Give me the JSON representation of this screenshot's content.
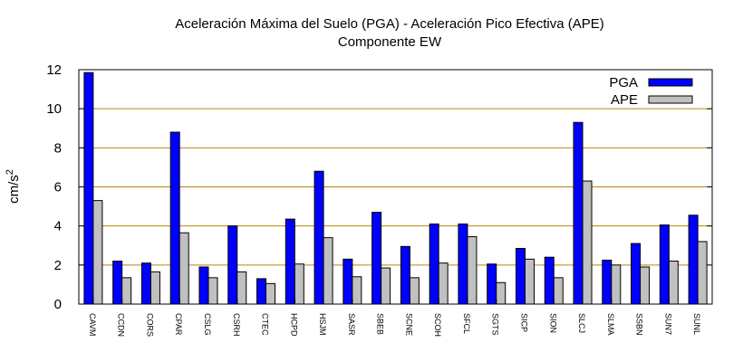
{
  "chart_data": {
    "type": "bar",
    "title": "Aceleración Máxima del Suelo (PGA) -  Aceleración Pico Efectiva (APE)",
    "subtitle": "Componente EW",
    "ylabel_main": "cm/s",
    "ylabel_sup": "2",
    "xlabel": "",
    "ylim": [
      0,
      12
    ],
    "yticks": [
      0,
      2,
      4,
      6,
      8,
      10,
      12
    ],
    "ytick_labels": [
      "0",
      "2",
      "4",
      "6",
      "8",
      "10",
      "12"
    ],
    "grid": true,
    "grid_axis": "y",
    "legend_placement": "top-right",
    "categories": [
      "CAVM",
      "CCDN",
      "CORS",
      "CPAR",
      "CSLG",
      "CSRH",
      "CTEC",
      "HCPD",
      "HSJM",
      "SASR",
      "SBEB",
      "SCNE",
      "SCOH",
      "SFCL",
      "SGTS",
      "SICP",
      "SION",
      "SLCJ",
      "SLMA",
      "SSBN",
      "SUN7",
      "SUNL"
    ],
    "series": [
      {
        "name": "PGA",
        "color": "#0000ff",
        "values": [
          11.85,
          2.2,
          2.1,
          8.8,
          1.9,
          4.0,
          1.3,
          4.35,
          6.8,
          2.3,
          4.7,
          2.95,
          4.1,
          4.1,
          2.05,
          2.85,
          2.4,
          9.3,
          2.25,
          3.1,
          4.05,
          4.55
        ]
      },
      {
        "name": "APE",
        "color": "#c0c0c0",
        "values": [
          5.3,
          1.35,
          1.65,
          3.65,
          1.35,
          1.65,
          1.05,
          2.05,
          3.4,
          1.4,
          1.85,
          1.35,
          2.1,
          3.45,
          1.1,
          2.3,
          1.35,
          6.3,
          2.0,
          1.9,
          2.2,
          3.2
        ]
      }
    ],
    "colors": {
      "grid": "#b8860b",
      "axis": "#000000"
    }
  }
}
